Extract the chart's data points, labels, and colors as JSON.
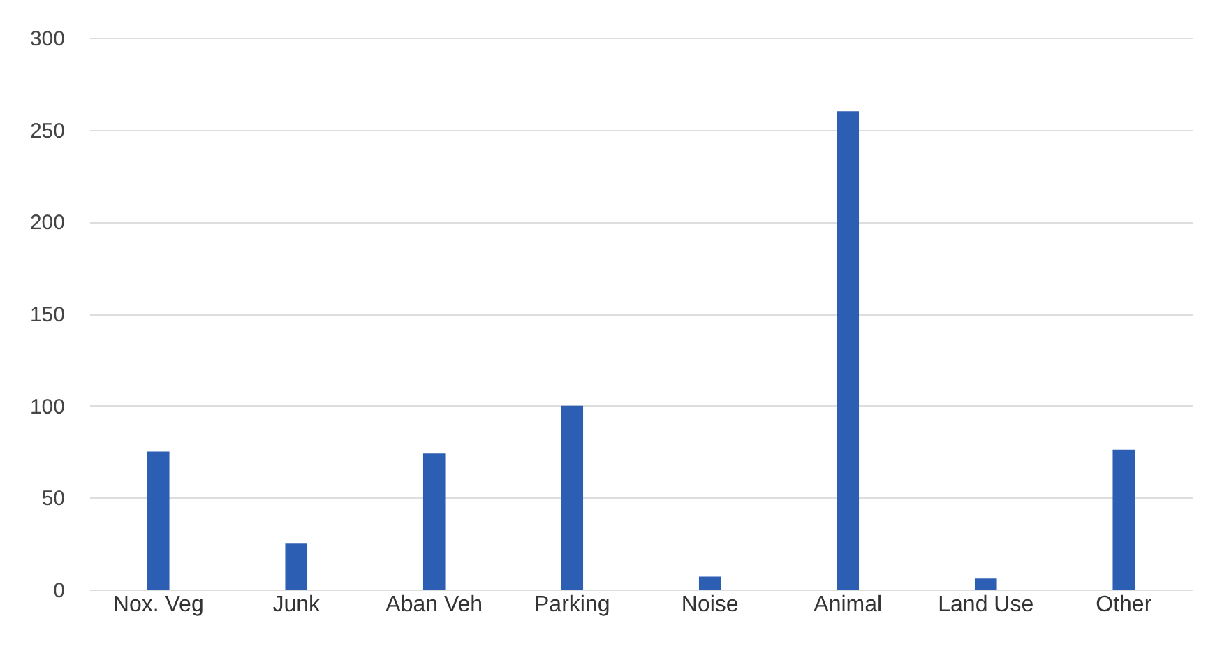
{
  "chart_data": {
    "type": "bar",
    "categories": [
      "Nox. Veg",
      "Junk",
      "Aban Veh",
      "Parking",
      "Noise",
      "Animal",
      "Land Use",
      "Other"
    ],
    "values": [
      75,
      25,
      74,
      100,
      7,
      260,
      6,
      76
    ],
    "color": "#2c5fb3",
    "ylim": [
      0,
      300
    ],
    "yticks": [
      0,
      50,
      100,
      150,
      200,
      250,
      300
    ],
    "grid": "y"
  }
}
